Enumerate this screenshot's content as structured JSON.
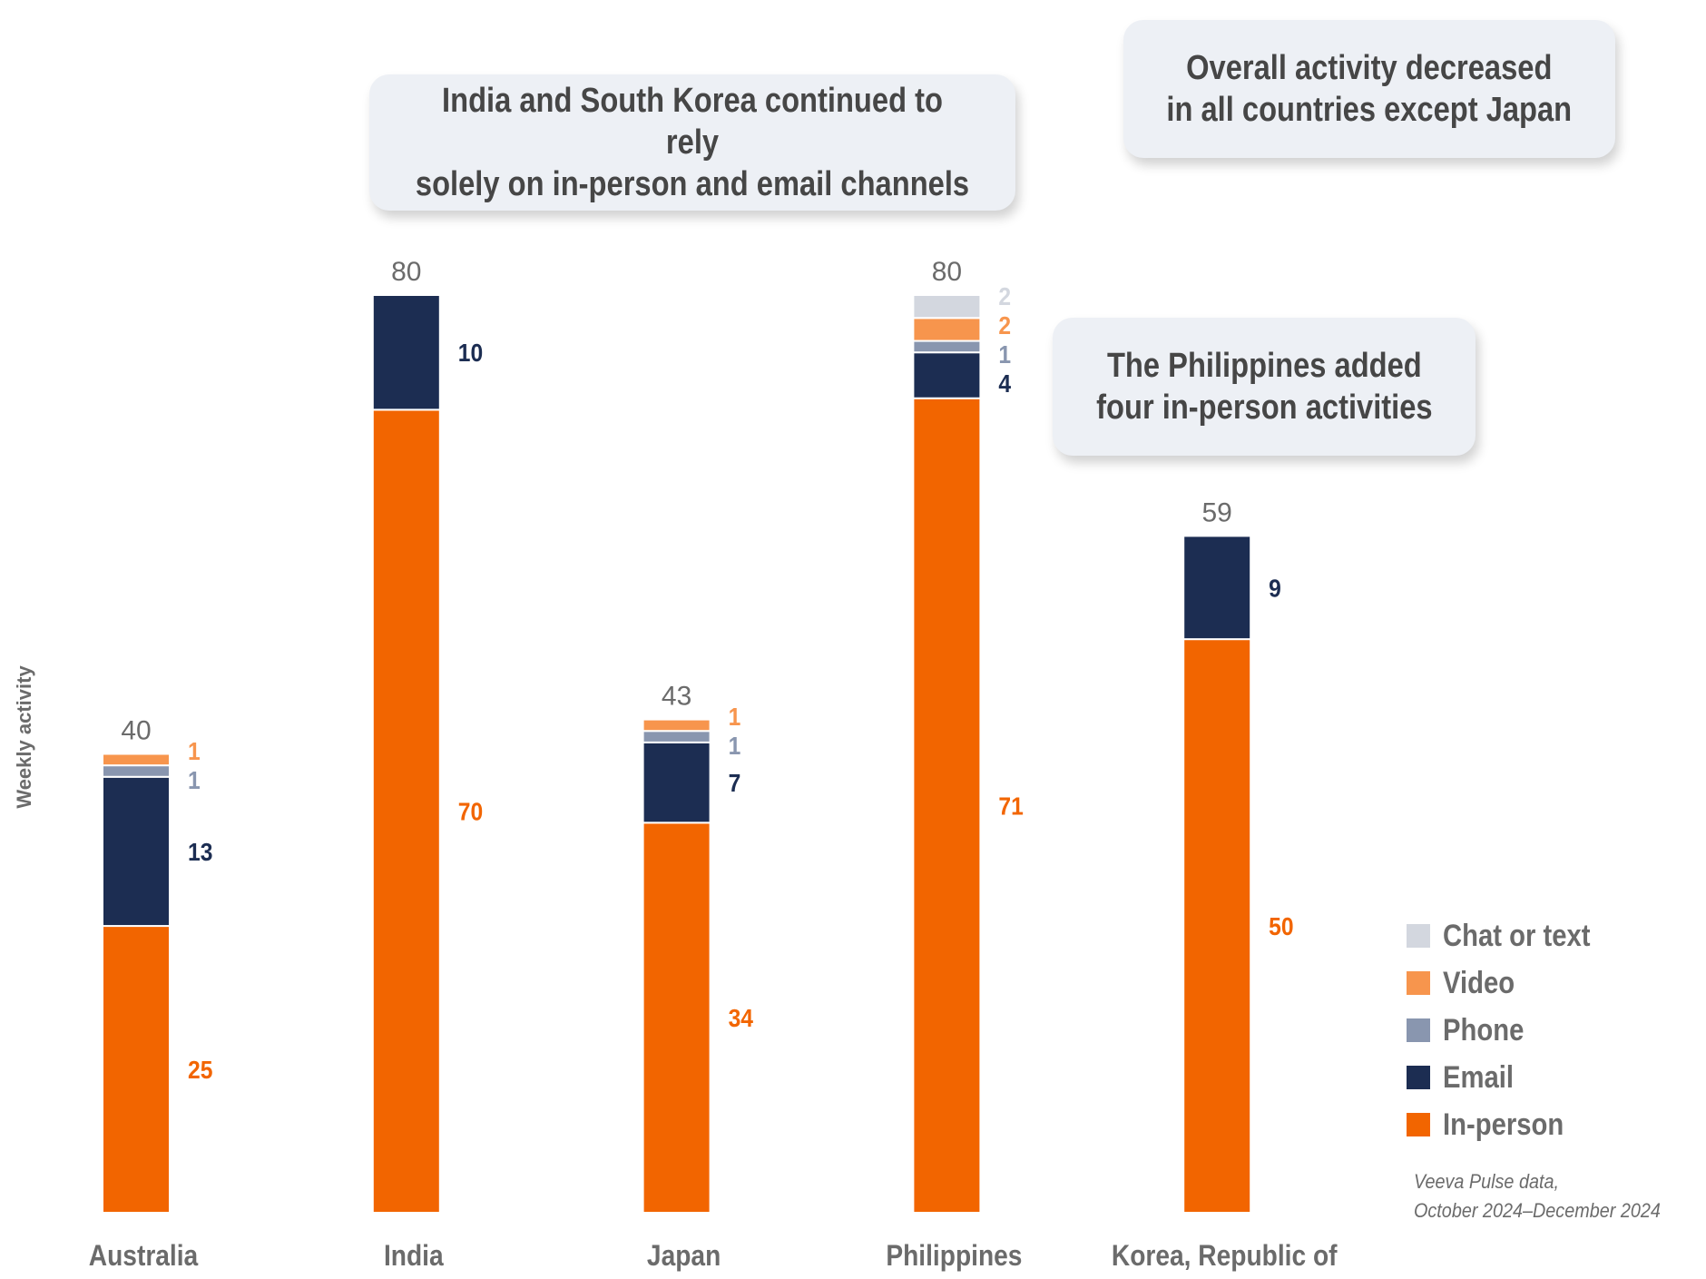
{
  "callouts": [
    {
      "text": "India and South Korea continued to rely\nsolely on in-person and email channels"
    },
    {
      "text": "Overall activity decreased\nin all countries except Japan"
    },
    {
      "text": "The Philippines added\nfour in-person activities"
    }
  ],
  "source_note": {
    "line1": "Veeva Pulse data,",
    "line2": "October 2024–December 2024"
  },
  "chart_data": {
    "type": "bar",
    "stacked": true,
    "title": "",
    "xlabel": "",
    "ylabel": "Weekly activity",
    "ylim": [
      0,
      80
    ],
    "grid": false,
    "legend_position": "bottom-right",
    "categories": [
      "Australia",
      "India",
      "Japan",
      "Philippines",
      "Korea, Republic of"
    ],
    "totals": [
      40,
      80,
      43,
      80,
      59
    ],
    "series": [
      {
        "name": "In-person",
        "color": "#F26500",
        "label_color": "#F26500",
        "values": [
          25,
          70,
          34,
          71,
          50
        ]
      },
      {
        "name": "Email",
        "color": "#1C2D52",
        "label_color": "#1C2D52",
        "values": [
          13,
          10,
          7,
          4,
          9
        ]
      },
      {
        "name": "Phone",
        "color": "#8996AF",
        "label_color": "#8996AF",
        "values": [
          1,
          0,
          1,
          1,
          0
        ]
      },
      {
        "name": "Video",
        "color": "#F7954D",
        "label_color": "#F7954D",
        "values": [
          1,
          0,
          1,
          2,
          0
        ]
      },
      {
        "name": "Chat or text",
        "color": "#D3D7DF",
        "label_color": "#D3D7DF",
        "values": [
          0,
          0,
          0,
          2,
          0
        ]
      }
    ],
    "legend_order": [
      "Chat or text",
      "Video",
      "Phone",
      "Email",
      "In-person"
    ],
    "total_label_color": "#6B6B6B",
    "axis_label_color": "#6B6B6B"
  }
}
